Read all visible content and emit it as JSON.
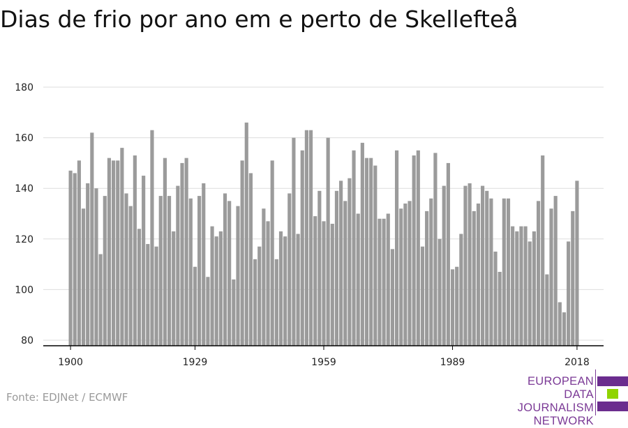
{
  "title": "Dias de frio por ano em e perto de Skellefteå",
  "source": "Fonte: EDJNet / ECMWF",
  "logo": {
    "lines": [
      "EUROPEAN",
      "DATA JOURNALISM",
      "NETWORK"
    ],
    "colors": {
      "purple": "#6b2d8e",
      "green": "#8fd400",
      "text": "#7b3a96"
    }
  },
  "colors": {
    "bar": "#9b9b9b",
    "grid": "#dddddd",
    "axis": "#000000"
  },
  "chart_data": {
    "type": "bar",
    "title": "Dias de frio por ano em e perto de Skellefteå",
    "xlabel": "",
    "ylabel": "",
    "ylim": [
      80,
      180
    ],
    "yticks": [
      80,
      100,
      120,
      140,
      160,
      180
    ],
    "xticks": [
      1900,
      1929,
      1959,
      1989,
      2018
    ],
    "grid": true,
    "x_start": 1900,
    "x_end": 2018,
    "values": [
      147,
      146,
      151,
      132,
      142,
      162,
      140,
      114,
      137,
      152,
      151,
      151,
      156,
      138,
      133,
      153,
      124,
      145,
      118,
      163,
      117,
      137,
      152,
      137,
      123,
      141,
      150,
      152,
      136,
      109,
      137,
      142,
      105,
      125,
      121,
      123,
      138,
      135,
      104,
      133,
      151,
      166,
      146,
      112,
      117,
      132,
      127,
      151,
      112,
      123,
      121,
      138,
      160,
      122,
      155,
      163,
      163,
      129,
      139,
      127,
      160,
      126,
      139,
      143,
      135,
      144,
      155,
      130,
      158,
      152,
      152,
      149,
      128,
      128,
      130,
      116,
      155,
      132,
      134,
      135,
      153,
      155,
      117,
      131,
      136,
      154,
      120,
      141,
      150,
      108,
      109,
      122,
      141,
      142,
      131,
      134,
      141,
      139,
      136,
      115,
      107,
      136,
      136,
      125,
      123,
      125,
      125,
      119,
      123,
      135,
      153,
      106,
      132,
      137,
      95,
      91,
      119,
      131,
      143
    ]
  }
}
